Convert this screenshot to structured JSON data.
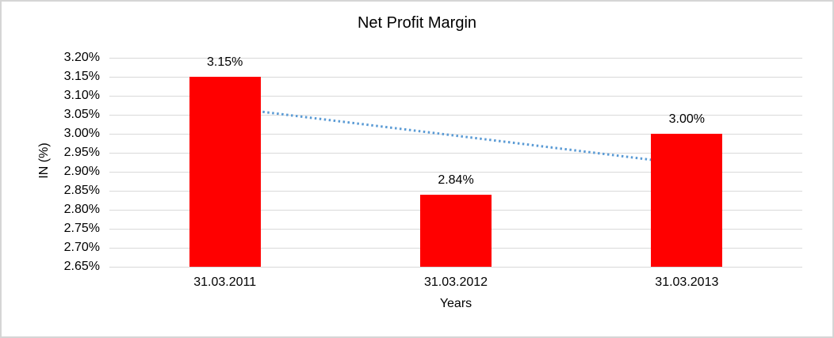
{
  "frame": {
    "background_color": "#ffffff",
    "border_color": "#d5d5d5"
  },
  "chart_data": {
    "type": "bar",
    "title": "Net Profit Margin",
    "xlabel": "Years",
    "ylabel": "IN (%)",
    "categories": [
      "31.03.2011",
      "31.03.2012",
      "31.03.2013"
    ],
    "values": [
      3.15,
      2.84,
      3.0
    ],
    "data_labels": [
      "3.15%",
      "2.84%",
      "3.00%"
    ],
    "ylim": [
      2.65,
      3.2
    ],
    "ytick_step": 0.05,
    "ytick_labels": [
      "3.20%",
      "3.15%",
      "3.10%",
      "3.05%",
      "3.00%",
      "2.95%",
      "2.90%",
      "2.85%",
      "2.80%",
      "2.75%",
      "2.70%",
      "2.65%"
    ],
    "grid": true,
    "legend": "none",
    "bar_color": "#ff0000",
    "gridline_color": "#d9d9d9",
    "axis_line_color": "#d9d9d9",
    "text_color": "#000000",
    "trendline": {
      "type": "linear",
      "style": "dotted",
      "color": "#5b9bd5",
      "start_value": 3.07,
      "end_value": 2.92
    }
  }
}
